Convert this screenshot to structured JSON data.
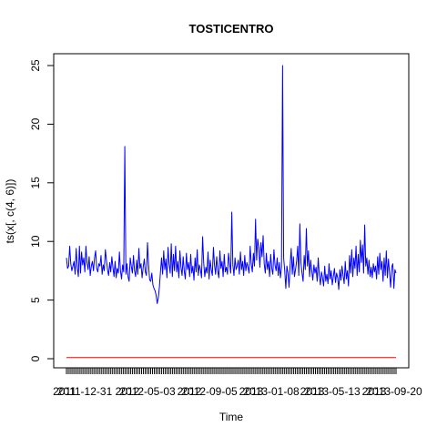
{
  "chart_data": {
    "type": "line",
    "title": "TOSTICENTRO",
    "xlabel": "Time",
    "ylabel": "ts(x[, c(4, 6)])",
    "ylim": [
      0,
      25
    ],
    "yticks": [
      "0",
      "5",
      "10",
      "15",
      "20",
      "25"
    ],
    "x_tick_labels": [
      "2011-12-31",
      "2012-05-03",
      "2012-09-05",
      "2013-01-08",
      "2013-05-13",
      "2013-09-20"
    ],
    "x_tick_labels_overlap": [
      "2011",
      "2012",
      "2012",
      "2013",
      "2013",
      "2013"
    ],
    "grid": false,
    "series": [
      {
        "color": "#0000ff",
        "values": [
          8.6,
          7.7,
          7.9,
          9.6,
          8.1,
          7.5,
          7.9,
          8.3,
          7.2,
          9.4,
          7.8,
          7.0,
          9.6,
          7.3,
          9.1,
          8.0,
          8.6,
          7.4,
          9.6,
          8.2,
          7.6,
          8.7,
          7.1,
          7.9,
          8.3,
          7.5,
          8.6,
          9.2,
          7.7,
          7.4,
          8.1,
          7.9,
          8.8,
          7.2,
          8.0,
          7.5,
          9.3,
          8.4,
          7.6,
          7.1,
          8.2,
          7.4,
          8.7,
          7.8,
          7.0,
          8.3,
          6.9,
          7.7,
          7.3,
          9.1,
          7.5,
          6.8,
          8.0,
          7.4,
          18.1,
          7.2,
          8.1,
          7.0,
          6.6,
          8.6,
          7.9,
          7.3,
          8.8,
          7.5,
          7.0,
          8.4,
          7.2,
          9.4,
          7.7,
          8.1,
          6.9,
          7.8,
          8.5,
          7.4,
          7.1,
          9.9,
          8.0,
          6.7,
          6.6,
          7.3,
          6.3,
          6.0,
          5.8,
          5.4,
          4.7,
          5.2,
          6.1,
          7.4,
          8.6,
          7.2,
          9.2,
          7.6,
          8.5,
          6.9,
          9.5,
          8.1,
          7.3,
          9.8,
          7.0,
          8.9,
          7.5,
          9.6,
          7.4,
          8.3,
          6.9,
          9.2,
          7.8,
          7.1,
          8.7,
          7.5,
          6.8,
          9.0,
          7.6,
          8.2,
          7.0,
          8.9,
          7.3,
          7.9,
          6.7,
          8.6,
          7.4,
          9.3,
          7.1,
          8.0,
          7.6,
          6.9,
          10.4,
          8.2,
          7.0,
          7.8,
          7.3,
          9.1,
          6.8,
          8.4,
          7.6,
          7.1,
          9.5,
          8.0,
          7.2,
          8.7,
          7.5,
          6.9,
          9.2,
          7.7,
          8.3,
          7.0,
          8.9,
          7.4,
          7.8,
          7.2,
          9.0,
          8.1,
          7.3,
          12.5,
          8.0,
          7.1,
          8.6,
          7.6,
          7.9,
          8.4,
          7.2,
          9.1,
          7.6,
          8.3,
          7.1,
          8.8,
          7.5,
          8.2,
          7.8,
          7.3,
          9.6,
          8.1,
          7.4,
          9.0,
          7.9,
          11.9,
          8.4,
          10.2,
          9.5,
          7.8,
          9.9,
          8.7,
          10.5,
          8.1,
          7.3,
          9.0,
          7.6,
          8.3,
          7.0,
          8.9,
          7.7,
          7.2,
          9.3,
          8.0,
          7.5,
          8.6,
          7.1,
          8.2,
          6.9,
          7.8,
          25.0,
          8.6,
          7.5,
          6.0,
          7.9,
          7.3,
          6.1,
          8.0,
          9.4,
          7.2,
          8.7,
          7.0,
          7.6,
          8.3,
          9.6,
          7.1,
          11.5,
          8.2,
          7.3,
          6.6,
          8.8,
          7.6,
          11.1,
          7.9,
          9.2,
          7.0,
          8.4,
          7.5,
          6.7,
          8.0,
          7.3,
          7.8,
          6.6,
          8.6,
          7.1,
          6.3,
          7.4,
          6.9,
          6.2,
          7.9,
          6.6,
          7.2,
          6.4,
          8.1,
          6.8,
          7.5,
          6.3,
          7.0,
          7.7,
          6.5,
          7.3,
          6.9,
          5.9,
          7.6,
          6.7,
          7.9,
          7.1,
          6.4,
          8.3,
          6.8,
          7.5,
          6.2,
          8.8,
          7.3,
          9.3,
          7.0,
          8.6,
          7.7,
          9.6,
          7.1,
          8.9,
          7.4,
          10.1,
          8.2,
          9.7,
          7.3,
          11.4,
          7.9,
          8.6,
          7.2,
          8.4,
          7.0,
          7.8,
          6.9,
          8.1,
          7.4,
          7.9,
          6.8,
          8.7,
          7.2,
          9.0,
          7.6,
          8.3,
          6.6,
          8.6,
          7.1,
          9.2,
          6.9,
          8.5,
          7.3,
          6.1,
          7.8,
          8.1,
          6.0,
          7.6,
          7.3
        ]
      },
      {
        "color": "#ff0000",
        "values": [
          0.1,
          0.1,
          0.1,
          0.1,
          0.1,
          0.1,
          0.1,
          0.1,
          0.1,
          0.1,
          0.1,
          0.1,
          0.1,
          0.1,
          0.1,
          0.1,
          0.1,
          0.1,
          0.1,
          0.1,
          0.1,
          0.1,
          0.1,
          0.1,
          0.1,
          0.1,
          0.1,
          0.1,
          0.1,
          0.1,
          0.1,
          0.1,
          0.1,
          0.1,
          0.1,
          0.1,
          0.1,
          0.1,
          0.1,
          0.1
        ]
      }
    ]
  }
}
